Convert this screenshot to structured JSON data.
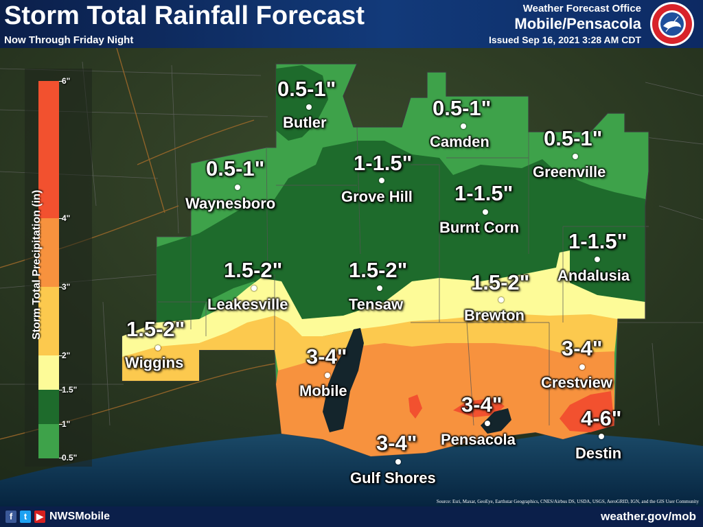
{
  "header": {
    "title": "Storm Total Rainfall Forecast",
    "subtitle": "Now Through Friday Night",
    "office_line1": "Weather Forecast Office",
    "office_line2": "Mobile/Pensacola",
    "issued": "Issued Sep 16, 2021 3:28 AM CDT",
    "logo_text": "NATIONAL WEATHER SERVICE"
  },
  "legend": {
    "title": "Storm Total Precipitation (in)",
    "ticks": [
      "6\"",
      "4\"",
      "3\"",
      "2\"",
      "1.5\"",
      "1\"",
      "0.5\""
    ],
    "bins": [
      {
        "range": "0.5-1",
        "color": "#3ea24a"
      },
      {
        "range": "1-1.5",
        "color": "#1e6b2c"
      },
      {
        "range": "1.5-2",
        "color": "#fdfb98"
      },
      {
        "range": "2-3",
        "color": "#fcc94e"
      },
      {
        "range": "3-4",
        "color": "#f7923e"
      },
      {
        "range": "4-6",
        "color": "#f2512f"
      }
    ]
  },
  "labels": [
    {
      "amount": "0.5-1\"",
      "place": "Butler"
    },
    {
      "amount": "0.5-1\"",
      "place": "Camden"
    },
    {
      "amount": "0.5-1\"",
      "place": "Greenville"
    },
    {
      "amount": "0.5-1\"",
      "place": "Waynesboro"
    },
    {
      "amount": "1-1.5\"",
      "place": "Grove Hill"
    },
    {
      "amount": "1-1.5\"",
      "place": "Burnt Corn"
    },
    {
      "amount": "1-1.5\"",
      "place": "Andalusia"
    },
    {
      "amount": "1.5-2\"",
      "place": "Leakesville"
    },
    {
      "amount": "1.5-2\"",
      "place": "Tensaw"
    },
    {
      "amount": "1.5-2\"",
      "place": "Brewton"
    },
    {
      "amount": "1.5-2\"",
      "place": "Wiggins"
    },
    {
      "amount": "3-4\"",
      "place": "Mobile"
    },
    {
      "amount": "3-4\"",
      "place": "Crestview"
    },
    {
      "amount": "3-4\"",
      "place": "Pensacola"
    },
    {
      "amount": "3-4\"",
      "place": "Gulf Shores"
    },
    {
      "amount": "4-6\"",
      "place": "Destin"
    }
  ],
  "footer": {
    "handle": "NWSMobile",
    "website": "weather.gov/mob",
    "source": "Source: Esri, Maxar, GeoEye, Earthstar Geographics, CNES/Airbus DS, USDA, USGS, AeroGRID, IGN, and the GIS User Community",
    "social_icons": [
      "facebook-icon",
      "twitter-icon",
      "youtube-icon"
    ]
  },
  "colors": {
    "header_bg": "#0b1f4a",
    "satellite_land": "#2b3a25",
    "gulf_water": "#0a2a45"
  }
}
